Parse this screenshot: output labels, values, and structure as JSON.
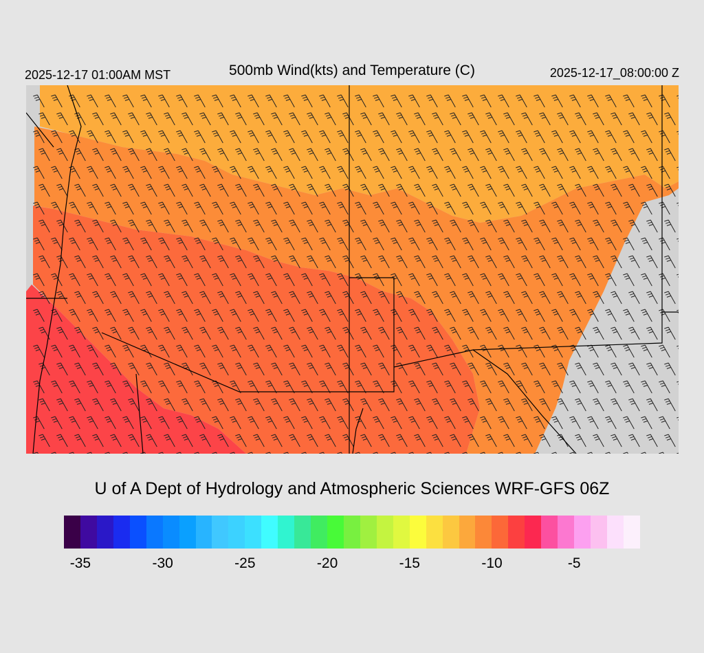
{
  "header": {
    "left_time": "2025-12-17 01:00AM MST",
    "title": "500mb Wind(kts) and Temperature (C)",
    "right_time": "2025-12-17_08:00:00 Z"
  },
  "footer": {
    "credit": "U of A Dept of Hydrology and Atmospheric Sciences WRF-GFS 06Z"
  },
  "colorbar": {
    "colors": [
      "#3a0048",
      "#3f0aa0",
      "#2a18c8",
      "#1a2cf0",
      "#0a50ff",
      "#0a78ff",
      "#0a8cff",
      "#0aa0ff",
      "#28b4ff",
      "#40c8ff",
      "#3cd2ff",
      "#3ce0ff",
      "#40fcff",
      "#30f4d0",
      "#38e898",
      "#40ec60",
      "#48fa38",
      "#78f040",
      "#a0f040",
      "#c4f440",
      "#e0f840",
      "#fcfc3c",
      "#fce040",
      "#fcc840",
      "#fca83c",
      "#fc8838",
      "#fc6838",
      "#fc4040",
      "#fc2850",
      "#fc50a0",
      "#fc78d0",
      "#fca0f0",
      "#fcc0f0",
      "#fce0fc",
      "#fcf0fc"
    ],
    "ticks": [
      "-35",
      "-30",
      "-25",
      "-20",
      "-15",
      "-10",
      "-5"
    ],
    "tick_values": [
      -35,
      -30,
      -25,
      -20,
      -15,
      -10,
      -5
    ],
    "range": [
      -36,
      -1
    ]
  },
  "map": {
    "background_color": "#d2d2d2",
    "temperature_colors": {
      "warm": "#fcaa3c",
      "mid": "#fc8a3a",
      "cool": "#fc6a3c",
      "cold": "#fc4a48"
    },
    "border_color": "#000000"
  }
}
